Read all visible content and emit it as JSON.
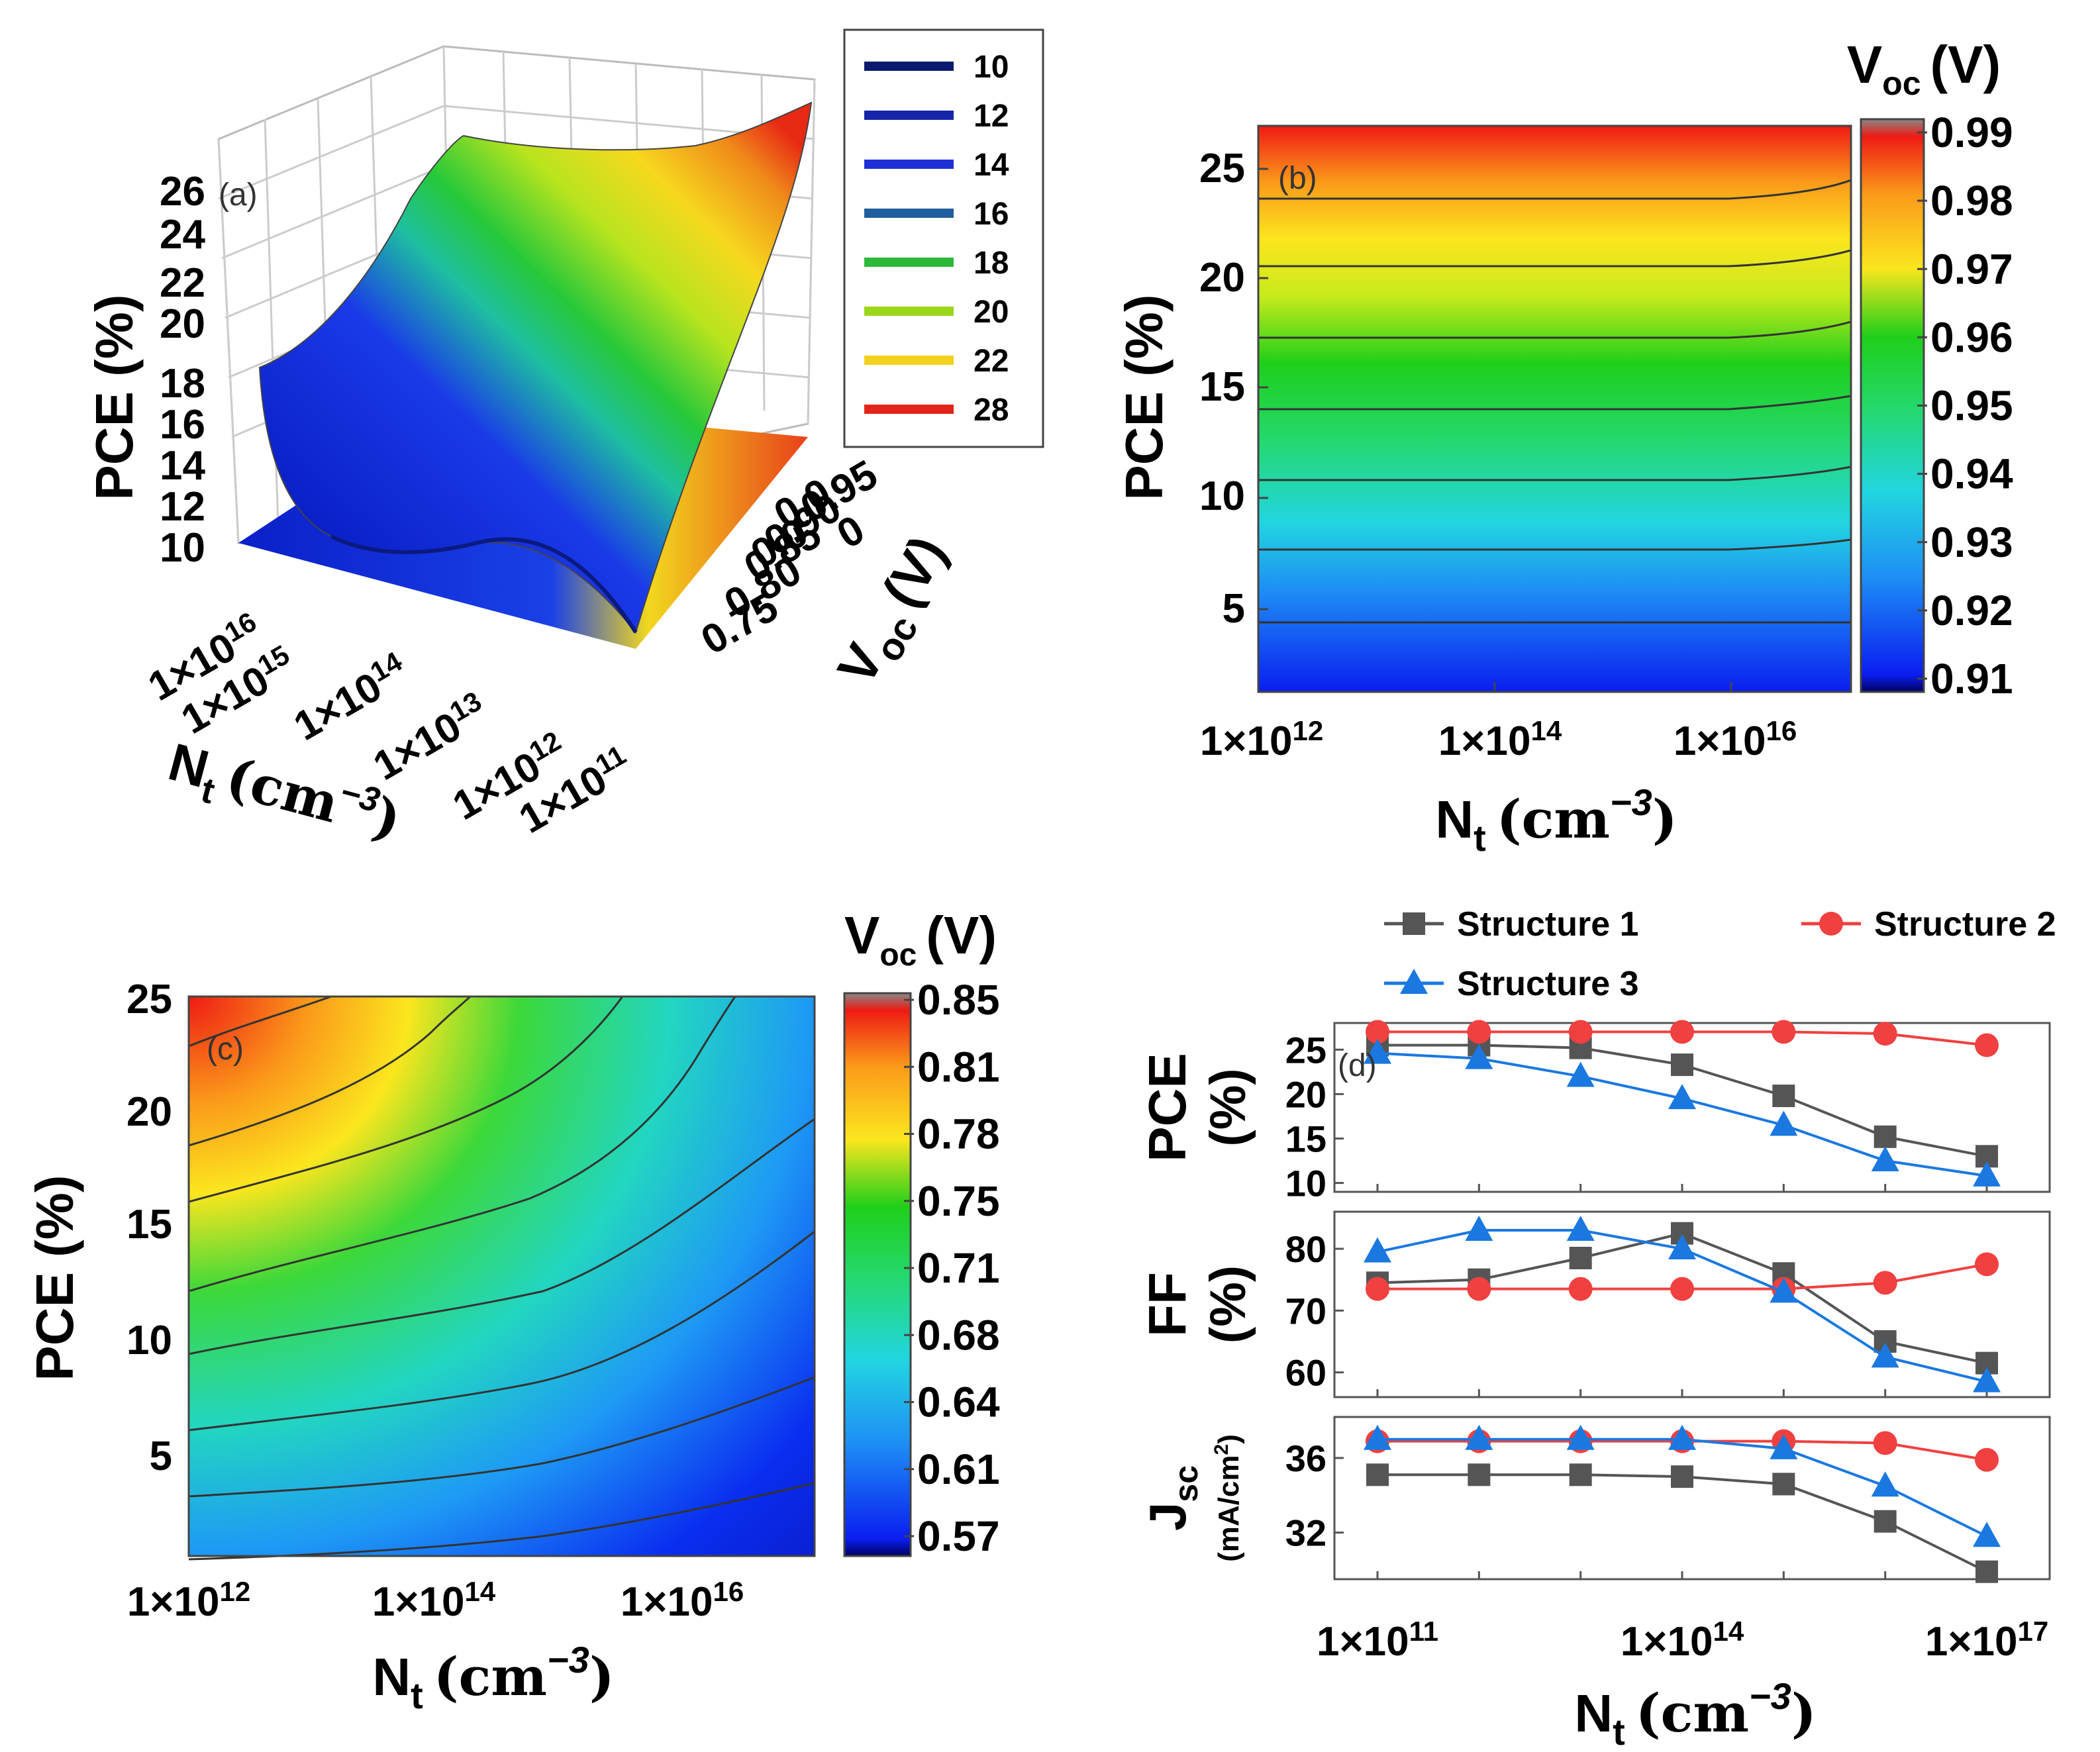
{
  "chart_data": [
    {
      "panel": "(a)",
      "type": "surface3d",
      "zlabel": "PCE (%)",
      "z_ticks": [
        "10",
        "12",
        "14",
        "16",
        "18",
        "20",
        "22",
        "24",
        "26"
      ],
      "xlabel": "N",
      "xlabel_sub": "t",
      "xlabel_unit": "(cm",
      "xlabel_exp": "−3",
      "x_ticks": [
        "1×10",
        "1×10",
        "1×10",
        "1×10",
        "1×10",
        "1×10"
      ],
      "x_tick_exps": [
        "16",
        "15",
        "14",
        "13",
        "12",
        "11"
      ],
      "ylabel": "V",
      "ylabel_sub": "oc",
      "ylabel_unit": "(V)",
      "y_ticks": [
        "0.75",
        "0.80",
        "0.85",
        "0.90",
        "0.95"
      ],
      "y_tick_overlaps": [
        "0.0",
        "0.0",
        "0"
      ],
      "legend": [
        "10",
        "12",
        "14",
        "16",
        "18",
        "20",
        "22",
        "28"
      ],
      "legend_colors": [
        "#0a1a6e",
        "#1524a8",
        "#1f2fd8",
        "#1f5f9e",
        "#2db83a",
        "#9ad61a",
        "#f2d21c",
        "#e32418"
      ]
    },
    {
      "panel": "(b)",
      "type": "contour",
      "xlabel": "N",
      "xlabel_sub": "t",
      "xlabel_unit": "(cm",
      "xlabel_exp": "−3",
      "x_ticks": [
        "1×10",
        "1×10",
        "1×10"
      ],
      "x_tick_exps": [
        "12",
        "14",
        "16"
      ],
      "ylabel": "PCE (%)",
      "y_ticks": [
        "5",
        "10",
        "15",
        "20",
        "25"
      ],
      "ylim": [
        1,
        27
      ],
      "colorbar_title": "V",
      "colorbar_sub": "oc",
      "colorbar_unit": "(V)",
      "colorbar_ticks": [
        "0.99",
        "0.98",
        "0.97",
        "0.96",
        "0.95",
        "0.94",
        "0.93",
        "0.92",
        "0.91"
      ]
    },
    {
      "panel": "(c)",
      "type": "contour",
      "xlabel": "N",
      "xlabel_sub": "t",
      "xlabel_unit": "(cm",
      "xlabel_exp": "−3",
      "x_ticks": [
        "1×10",
        "1×10",
        "1×10"
      ],
      "x_tick_exps": [
        "12",
        "14",
        "16"
      ],
      "ylabel": "PCE (%)",
      "y_ticks": [
        "5",
        "10",
        "15",
        "20",
        "25"
      ],
      "ylim": [
        1,
        25
      ],
      "colorbar_title": "V",
      "colorbar_sub": "oc",
      "colorbar_unit": "(V)",
      "colorbar_ticks": [
        "0.85",
        "0.81",
        "0.78",
        "0.75",
        "0.71",
        "0.68",
        "0.64",
        "0.61",
        "0.57"
      ]
    },
    {
      "panel": "(d)",
      "type": "line",
      "legend": [
        "Structure 1",
        "Structure 2",
        "Structure 3"
      ],
      "series_colors": [
        "#555555",
        "#f04040",
        "#1a78e0"
      ],
      "x_log": [
        11,
        12,
        13,
        14,
        15,
        16,
        17
      ],
      "xlabel": "N",
      "xlabel_sub": "t",
      "xlabel_unit": "(cm",
      "xlabel_exp": "−3",
      "x_ticks": [
        "1×10",
        "1×10",
        "1×10"
      ],
      "x_tick_exps": [
        "11",
        "14",
        "17"
      ],
      "subplots": [
        {
          "ylabel": "PCE",
          "ylabel2": "(%)",
          "ylim": [
            9,
            28
          ],
          "y_ticks": [
            10,
            15,
            20,
            25
          ],
          "series": [
            {
              "name": "Structure 1",
              "values": [
                25.5,
                25.5,
                25.2,
                23.3,
                19.8,
                15.2,
                13.0
              ]
            },
            {
              "name": "Structure 2",
              "values": [
                27.0,
                27.0,
                27.0,
                27.0,
                27.0,
                26.8,
                25.5
              ]
            },
            {
              "name": "Structure 3",
              "values": [
                24.6,
                24.0,
                22.0,
                19.5,
                16.5,
                12.5,
                10.8
              ]
            }
          ]
        },
        {
          "ylabel": "FF",
          "ylabel2": "(%)",
          "ylim": [
            56,
            86
          ],
          "y_ticks": [
            60,
            70,
            80
          ],
          "series": [
            {
              "name": "Structure 1",
              "values": [
                74.5,
                75.0,
                78.5,
                82.5,
                76.0,
                65.0,
                61.5
              ]
            },
            {
              "name": "Structure 2",
              "values": [
                73.5,
                73.5,
                73.5,
                73.5,
                73.5,
                74.5,
                77.5
              ]
            },
            {
              "name": "Structure 3",
              "values": [
                79.5,
                83.0,
                83.0,
                80.0,
                73.0,
                62.5,
                58.5
              ]
            }
          ]
        },
        {
          "ylabel": "J",
          "ylabel_sub": "sc",
          "ylabel2": "(mA/cm",
          "ylabel2_exp": "2",
          "ylabel2_end": ")",
          "ylim": [
            29.5,
            38.2
          ],
          "y_ticks": [
            32,
            36
          ],
          "series": [
            {
              "name": "Structure 1",
              "values": [
                35.1,
                35.1,
                35.1,
                35.0,
                34.6,
                32.6,
                29.9
              ]
            },
            {
              "name": "Structure 2",
              "values": [
                36.9,
                36.9,
                36.9,
                36.9,
                36.9,
                36.8,
                35.9
              ]
            },
            {
              "name": "Structure 3",
              "values": [
                37.0,
                37.0,
                37.0,
                37.0,
                36.5,
                34.5,
                31.8
              ]
            }
          ]
        }
      ]
    }
  ]
}
